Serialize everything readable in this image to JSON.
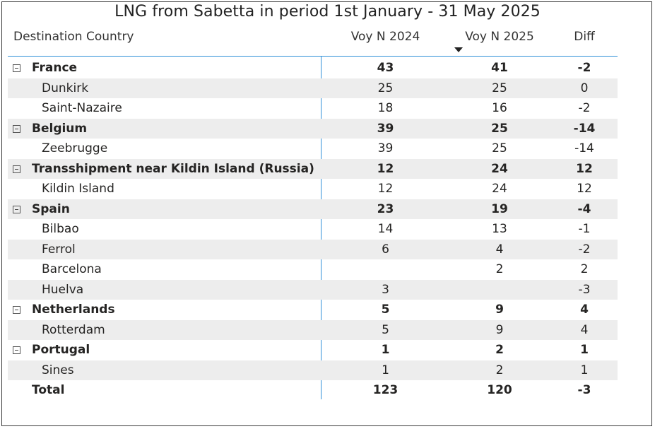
{
  "title": "LNG from Sabetta in period 1st January - 31 May 2025",
  "columns": {
    "country": "Destination Country",
    "voy2024": "Voy N 2024",
    "voy2025": "Voy N 2025",
    "diff": "Diff"
  },
  "sort": {
    "column": "Voy N 2025",
    "direction": "descending",
    "icon": "sort-desc-icon"
  },
  "colors": {
    "accent": "#2f8fd8",
    "row_shade": "#ededed"
  },
  "rows": [
    {
      "type": "parent",
      "name": "France",
      "voy2024": "43",
      "voy2025": "41",
      "diff": "-2",
      "expanded": true
    },
    {
      "type": "child",
      "name": "Dunkirk",
      "voy2024": "25",
      "voy2025": "25",
      "diff": "0"
    },
    {
      "type": "child",
      "name": "Saint-Nazaire",
      "voy2024": "18",
      "voy2025": "16",
      "diff": "-2"
    },
    {
      "type": "parent",
      "name": "Belgium",
      "voy2024": "39",
      "voy2025": "25",
      "diff": "-14",
      "expanded": true
    },
    {
      "type": "child",
      "name": "Zeebrugge",
      "voy2024": "39",
      "voy2025": "25",
      "diff": "-14"
    },
    {
      "type": "parent",
      "name": "Transshipment near Kildin Island (Russia)",
      "voy2024": "12",
      "voy2025": "24",
      "diff": "12",
      "expanded": true
    },
    {
      "type": "child",
      "name": "Kildin Island",
      "voy2024": "12",
      "voy2025": "24",
      "diff": "12"
    },
    {
      "type": "parent",
      "name": "Spain",
      "voy2024": "23",
      "voy2025": "19",
      "diff": "-4",
      "expanded": true
    },
    {
      "type": "child",
      "name": "Bilbao",
      "voy2024": "14",
      "voy2025": "13",
      "diff": "-1"
    },
    {
      "type": "child",
      "name": "Ferrol",
      "voy2024": "6",
      "voy2025": "4",
      "diff": "-2"
    },
    {
      "type": "child",
      "name": "Barcelona",
      "voy2024": "",
      "voy2025": "2",
      "diff": "2"
    },
    {
      "type": "child",
      "name": "Huelva",
      "voy2024": "3",
      "voy2025": "",
      "diff": "-3"
    },
    {
      "type": "parent",
      "name": "Netherlands",
      "voy2024": "5",
      "voy2025": "9",
      "diff": "4",
      "expanded": true
    },
    {
      "type": "child",
      "name": "Rotterdam",
      "voy2024": "5",
      "voy2025": "9",
      "diff": "4"
    },
    {
      "type": "parent",
      "name": "Portugal",
      "voy2024": "1",
      "voy2025": "2",
      "diff": "1",
      "expanded": true
    },
    {
      "type": "child",
      "name": "Sines",
      "voy2024": "1",
      "voy2025": "2",
      "diff": "1"
    },
    {
      "type": "total",
      "name": "Total",
      "voy2024": "123",
      "voy2025": "120",
      "diff": "-3"
    }
  ]
}
